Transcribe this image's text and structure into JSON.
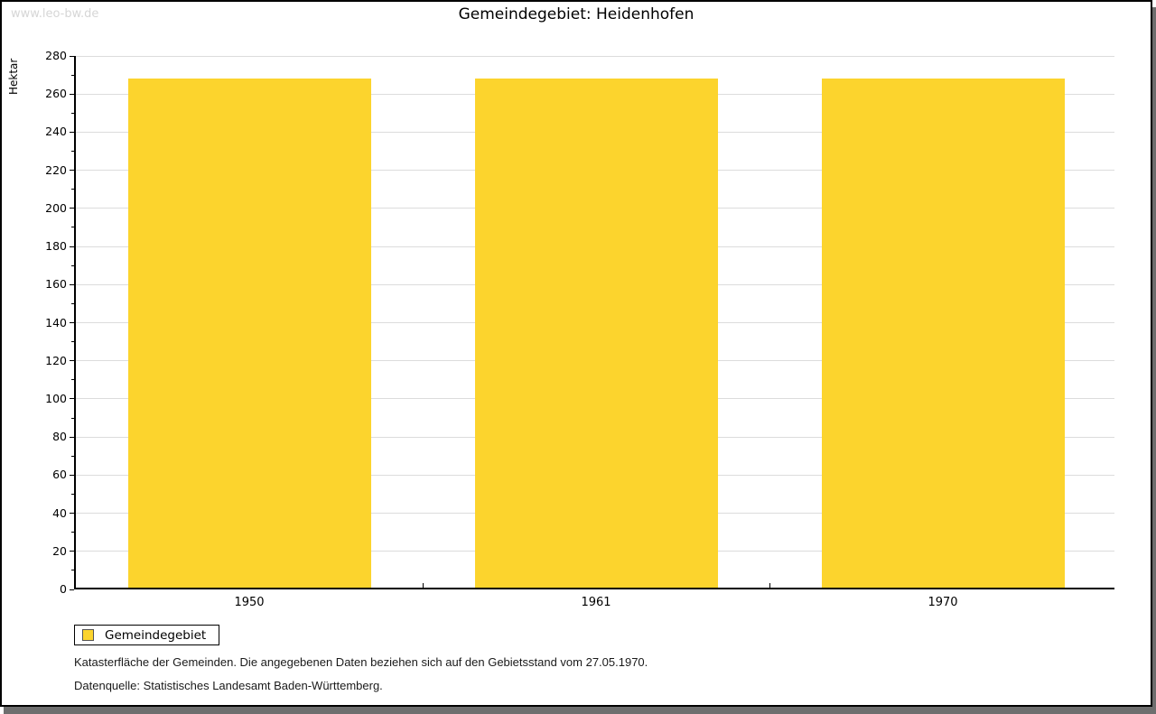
{
  "watermark": "www.leo-bw.de",
  "chart_data": {
    "type": "bar",
    "title": "Gemeindegebiet: Heidenhofen",
    "categories": [
      "1950",
      "1961",
      "1970"
    ],
    "values": [
      267,
      267,
      267
    ],
    "xlabel": "",
    "ylabel": "Hektar",
    "ylim": [
      0,
      280
    ],
    "ytick_step": 20,
    "ytick_minor_step": 10,
    "grid": true,
    "bar_color": "#fcd42d",
    "gridline_color": "#dcdcdc",
    "legend_position": "bottom-left"
  },
  "legend": {
    "label": "Gemeindegebiet",
    "swatch_color": "#fcd42d"
  },
  "footer": {
    "line1": "Katasterfläche der Gemeinden. Die angegebenen Daten beziehen sich auf den Gebietsstand vom 27.05.1970.",
    "line2": "Datenquelle: Statistisches Landesamt Baden-Württemberg."
  }
}
